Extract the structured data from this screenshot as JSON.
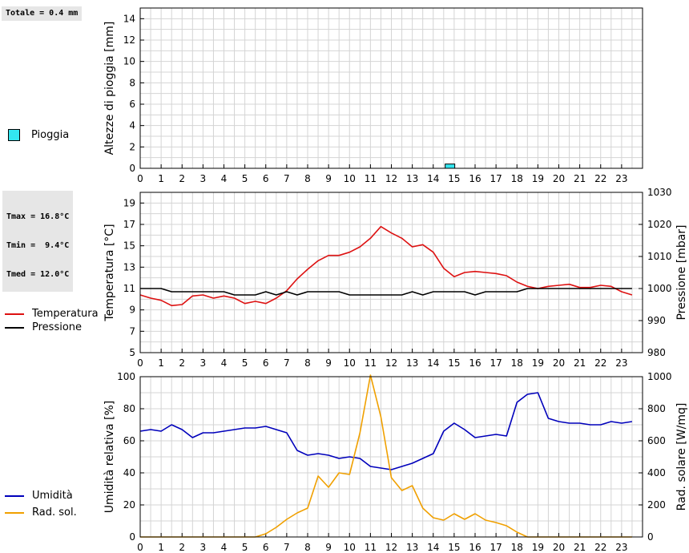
{
  "rain_panel": {
    "total_label": "Totale = 0.4 mm",
    "legend": [
      {
        "label": "Pioggia",
        "color": "#33e6f0"
      }
    ]
  },
  "temp_panel": {
    "stats": [
      "Tmax = 16.8°C",
      "Tmin =  9.4°C",
      "Tmed = 12.0°C"
    ],
    "legend": [
      {
        "label": "Temperatura",
        "color": "#dd1111"
      },
      {
        "label": "Pressione",
        "color": "#000000"
      }
    ]
  },
  "hum_panel": {
    "legend": [
      {
        "label": "Umidità",
        "color": "#0000bb"
      },
      {
        "label": "Rad. sol.",
        "color": "#f0a000"
      }
    ]
  },
  "chart_data": [
    {
      "type": "bar",
      "ylabel": "Altezze di pioggia [mm]",
      "ylim": [
        0,
        15
      ],
      "yticks": [
        "0",
        "2",
        "4",
        "6",
        "8",
        "10",
        "12",
        "14"
      ],
      "xticks": [
        "0",
        "1",
        "2",
        "3",
        "4",
        "5",
        "6",
        "7",
        "8",
        "9",
        "10",
        "11",
        "12",
        "13",
        "14",
        "15",
        "16",
        "17",
        "18",
        "19",
        "20",
        "21",
        "22",
        "23"
      ],
      "grid": true,
      "series": [
        {
          "name": "Pioggia",
          "color": "#33e6f0",
          "x": [
            14.8
          ],
          "values": [
            0.4
          ]
        }
      ]
    },
    {
      "type": "line",
      "ylabel": "Temperatura [°C]",
      "ylabel_right": "Pressione [mbar]",
      "ylim": [
        5,
        20
      ],
      "ylim_right": [
        980,
        1030
      ],
      "yticks": [
        "5",
        "7",
        "9",
        "11",
        "13",
        "15",
        "17",
        "19"
      ],
      "yticks_right": [
        "980",
        "990",
        "1000",
        "1010",
        "1020",
        "1030"
      ],
      "xticks": [
        "0",
        "1",
        "2",
        "3",
        "4",
        "5",
        "6",
        "7",
        "8",
        "9",
        "10",
        "11",
        "12",
        "13",
        "14",
        "15",
        "16",
        "17",
        "18",
        "19",
        "20",
        "21",
        "22",
        "23"
      ],
      "grid": true,
      "series": [
        {
          "name": "Temperatura",
          "color": "#dd1111",
          "axis": "left",
          "x": [
            0,
            0.5,
            1,
            1.5,
            2,
            2.5,
            3,
            3.5,
            4,
            4.5,
            5,
            5.5,
            6,
            6.5,
            7,
            7.5,
            8,
            8.5,
            9,
            9.5,
            10,
            10.5,
            11,
            11.5,
            12,
            12.5,
            13,
            13.5,
            14,
            14.5,
            15,
            15.5,
            16,
            16.5,
            17,
            17.5,
            18,
            18.5,
            19,
            19.5,
            20,
            20.5,
            21,
            21.5,
            22,
            22.5,
            23,
            23.5
          ],
          "values": [
            10.4,
            10.1,
            9.9,
            9.4,
            9.5,
            10.3,
            10.4,
            10.1,
            10.3,
            10.1,
            9.6,
            9.8,
            9.6,
            10.1,
            10.8,
            11.9,
            12.8,
            13.6,
            14.1,
            14.1,
            14.4,
            14.9,
            15.7,
            16.8,
            16.2,
            15.7,
            14.9,
            15.1,
            14.4,
            12.9,
            12.1,
            12.5,
            12.6,
            12.5,
            12.4,
            12.2,
            11.6,
            11.2,
            11.0,
            11.2,
            11.3,
            11.4,
            11.1,
            11.1,
            11.3,
            11.2,
            10.7,
            10.4
          ]
        },
        {
          "name": "Pressione",
          "color": "#000000",
          "axis": "right",
          "x": [
            0,
            0.5,
            1,
            1.5,
            2,
            2.5,
            3,
            3.5,
            4,
            4.5,
            5,
            5.5,
            6,
            6.5,
            7,
            7.5,
            8,
            8.5,
            9,
            9.5,
            10,
            10.5,
            11,
            11.5,
            12,
            12.5,
            13,
            13.5,
            14,
            14.5,
            15,
            15.5,
            16,
            16.5,
            17,
            17.5,
            18,
            18.5,
            19,
            19.5,
            20,
            20.5,
            21,
            21.5,
            22,
            22.5,
            23,
            23.5
          ],
          "values": [
            1000,
            1000,
            1000,
            999,
            999,
            999,
            999,
            999,
            999,
            998,
            998,
            998,
            999,
            998,
            999,
            998,
            999,
            999,
            999,
            999,
            998,
            998,
            998,
            998,
            998,
            998,
            999,
            998,
            999,
            999,
            999,
            999,
            998,
            999,
            999,
            999,
            999,
            1000,
            1000,
            1000,
            1000,
            1000,
            1000,
            1000,
            1000,
            1000,
            1000,
            1000
          ]
        }
      ]
    },
    {
      "type": "line",
      "ylabel": "Umidità relativa [%]",
      "ylabel_right": "Rad. solare [W/mq]",
      "ylim": [
        0,
        100
      ],
      "ylim_right": [
        0,
        1000
      ],
      "yticks": [
        "0",
        "20",
        "40",
        "60",
        "80",
        "100"
      ],
      "yticks_right": [
        "0",
        "200",
        "400",
        "600",
        "800",
        "1000"
      ],
      "xticks": [
        "0",
        "1",
        "2",
        "3",
        "4",
        "5",
        "6",
        "7",
        "8",
        "9",
        "10",
        "11",
        "12",
        "13",
        "14",
        "15",
        "16",
        "17",
        "18",
        "19",
        "20",
        "21",
        "22",
        "23"
      ],
      "grid": true,
      "series": [
        {
          "name": "Umidità",
          "color": "#0000bb",
          "axis": "left",
          "x": [
            0,
            0.5,
            1,
            1.5,
            2,
            2.5,
            3,
            3.5,
            4,
            4.5,
            5,
            5.5,
            6,
            6.5,
            7,
            7.5,
            8,
            8.5,
            9,
            9.5,
            10,
            10.5,
            11,
            11.5,
            12,
            12.5,
            13,
            13.5,
            14,
            14.5,
            15,
            15.5,
            16,
            16.5,
            17,
            17.5,
            18,
            18.5,
            19,
            19.5,
            20,
            20.5,
            21,
            21.5,
            22,
            22.5,
            23,
            23.5
          ],
          "values": [
            66,
            67,
            66,
            70,
            67,
            62,
            65,
            65,
            66,
            67,
            68,
            68,
            69,
            67,
            65,
            54,
            51,
            52,
            51,
            49,
            50,
            49,
            44,
            43,
            42,
            44,
            46,
            49,
            52,
            66,
            71,
            67,
            62,
            63,
            64,
            63,
            84,
            89,
            90,
            74,
            72,
            71,
            71,
            70,
            70,
            72,
            71,
            72
          ]
        },
        {
          "name": "Rad. sol.",
          "color": "#f0a000",
          "axis": "right",
          "x": [
            0,
            0.5,
            1,
            1.5,
            2,
            2.5,
            3,
            3.5,
            4,
            4.5,
            5,
            5.5,
            6,
            6.5,
            7,
            7.5,
            8,
            8.5,
            9,
            9.5,
            10,
            10.5,
            11,
            11.5,
            12,
            12.5,
            13,
            13.5,
            14,
            14.5,
            15,
            15.5,
            16,
            16.5,
            17,
            17.5,
            18,
            18.5,
            19,
            19.5,
            20,
            20.5,
            21,
            21.5,
            22,
            22.5,
            23,
            23.5
          ],
          "values": [
            0,
            0,
            0,
            0,
            0,
            0,
            0,
            0,
            0,
            0,
            0,
            0,
            20,
            60,
            110,
            150,
            180,
            380,
            310,
            400,
            390,
            650,
            1010,
            750,
            370,
            290,
            320,
            180,
            120,
            105,
            145,
            110,
            145,
            105,
            90,
            70,
            30,
            0,
            0,
            0,
            0,
            0,
            0,
            0,
            0,
            0,
            0,
            0
          ]
        }
      ]
    }
  ]
}
